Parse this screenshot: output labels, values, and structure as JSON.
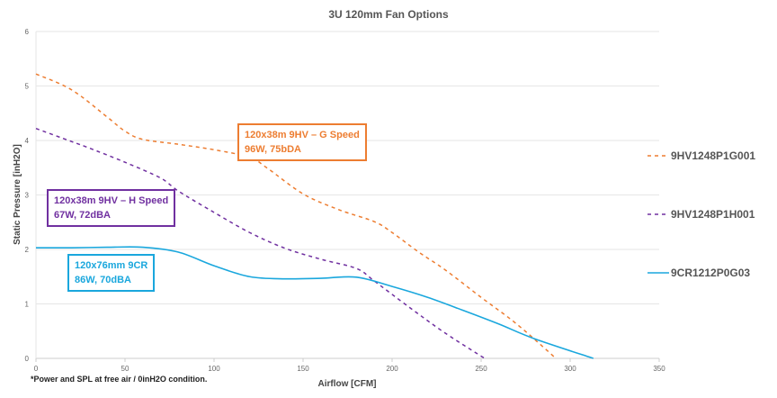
{
  "chart_data": {
    "type": "line",
    "title": "3U 120mm Fan Options",
    "xlabel": "Airflow [CFM]",
    "ylabel": "Static Pressure [inH2O]",
    "xlim": [
      0,
      350
    ],
    "ylim": [
      0,
      6
    ],
    "xticks": [
      0,
      50,
      100,
      150,
      200,
      250,
      300,
      350
    ],
    "yticks": [
      0,
      1,
      2,
      3,
      4,
      5,
      6
    ],
    "grid": "horizontal",
    "legend": "right",
    "series": [
      {
        "name": "9HV1248P1G001",
        "color": "#ED7D31",
        "dash": true,
        "x": [
          0,
          20,
          40,
          50,
          60,
          80,
          100,
          120,
          130,
          150,
          170,
          190,
          200,
          215,
          230,
          250,
          270,
          292
        ],
        "y": [
          5.22,
          4.93,
          4.43,
          4.17,
          4.02,
          3.93,
          3.83,
          3.69,
          3.49,
          3.02,
          2.73,
          2.51,
          2.31,
          1.95,
          1.62,
          1.12,
          0.63,
          0
        ]
      },
      {
        "name": "9HV1248P1H001",
        "color": "#7030A0",
        "dash": true,
        "x": [
          0,
          20,
          30,
          50,
          70,
          80,
          100,
          120,
          140,
          160,
          180,
          190,
          210,
          230,
          252
        ],
        "y": [
          4.22,
          3.98,
          3.86,
          3.6,
          3.31,
          3.07,
          2.68,
          2.31,
          2.02,
          1.82,
          1.65,
          1.42,
          0.93,
          0.46,
          0
        ]
      },
      {
        "name": "9CR1212P0G03",
        "color": "#1AA7DD",
        "dash": false,
        "x": [
          0,
          20,
          40,
          60,
          80,
          100,
          120,
          140,
          160,
          180,
          200,
          220,
          240,
          260,
          280,
          313
        ],
        "y": [
          2.03,
          2.03,
          2.04,
          2.04,
          1.95,
          1.7,
          1.5,
          1.46,
          1.47,
          1.49,
          1.32,
          1.12,
          0.88,
          0.63,
          0.36,
          0
        ]
      }
    ],
    "annotations": [
      {
        "line1": "120x38m 9HV – G Speed",
        "line2": "96W, 75bDA",
        "color": "#ED7D31"
      },
      {
        "line1": "120x38m 9HV – H Speed",
        "line2": "67W, 72dBA",
        "color": "#7030A0"
      },
      {
        "line1": "120x76mm 9CR",
        "line2": "86W, 70dBA",
        "color": "#1AA7DD"
      }
    ],
    "footnote": "*Power and SPL at free air / 0inH2O condition."
  }
}
